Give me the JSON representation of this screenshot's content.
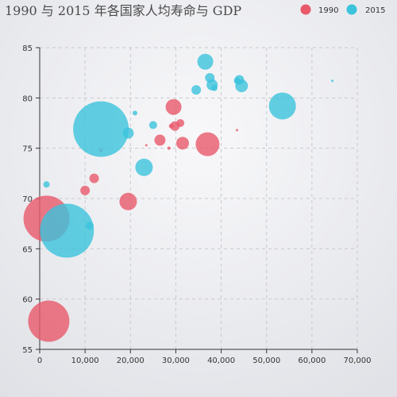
{
  "chart_data": {
    "type": "scatter",
    "title": "1990 与 2015 年各国家人均寿命与 GDP",
    "xlim": [
      0,
      70000
    ],
    "ylim": [
      55,
      85
    ],
    "x_ticks": [
      "0",
      "10,000",
      "20,000",
      "30,000",
      "40,000",
      "50,000",
      "60,000",
      "70,000"
    ],
    "y_ticks": [
      "55",
      "60",
      "65",
      "70",
      "75",
      "80",
      "85"
    ],
    "x_tick_values": [
      0,
      10000,
      20000,
      30000,
      40000,
      50000,
      60000,
      70000
    ],
    "y_tick_values": [
      55,
      60,
      65,
      70,
      75,
      80,
      85
    ],
    "grid": true,
    "legend_position": "top-right",
    "series": [
      {
        "name": "1990",
        "color": "#e8596a",
        "points": [
          {
            "x": 2000,
            "y": 57.8,
            "size": 26
          },
          {
            "x": 1500,
            "y": 68,
            "size": 29
          },
          {
            "x": 10000,
            "y": 70.8,
            "size": 6
          },
          {
            "x": 12000,
            "y": 72,
            "size": 6
          },
          {
            "x": 19500,
            "y": 69.7,
            "size": 11
          },
          {
            "x": 13500,
            "y": 74.8,
            "size": 2
          },
          {
            "x": 23500,
            "y": 75.3,
            "size": 1.5
          },
          {
            "x": 26500,
            "y": 75.8,
            "size": 7
          },
          {
            "x": 28500,
            "y": 75,
            "size": 2
          },
          {
            "x": 29000,
            "y": 77.2,
            "size": 3
          },
          {
            "x": 29800,
            "y": 77.2,
            "size": 6
          },
          {
            "x": 29500,
            "y": 79.1,
            "size": 10
          },
          {
            "x": 31000,
            "y": 77.5,
            "size": 5
          },
          {
            "x": 31500,
            "y": 75.5,
            "size": 8
          },
          {
            "x": 37000,
            "y": 75.4,
            "size": 15
          },
          {
            "x": 43500,
            "y": 76.8,
            "size": 1.5
          }
        ]
      },
      {
        "name": "2015",
        "color": "#3bc3dc",
        "points": [
          {
            "x": 6000,
            "y": 66.8,
            "size": 34
          },
          {
            "x": 1500,
            "y": 71.4,
            "size": 4
          },
          {
            "x": 11000,
            "y": 67.3,
            "size": 5
          },
          {
            "x": 13500,
            "y": 76.9,
            "size": 35
          },
          {
            "x": 19500,
            "y": 76.5,
            "size": 7
          },
          {
            "x": 21000,
            "y": 78.5,
            "size": 3
          },
          {
            "x": 23000,
            "y": 73.1,
            "size": 11
          },
          {
            "x": 25000,
            "y": 77.3,
            "size": 5
          },
          {
            "x": 34500,
            "y": 80.8,
            "size": 6
          },
          {
            "x": 36500,
            "y": 83.6,
            "size": 10
          },
          {
            "x": 37500,
            "y": 82,
            "size": 6
          },
          {
            "x": 38000,
            "y": 81.3,
            "size": 7
          },
          {
            "x": 38500,
            "y": 81,
            "size": 4
          },
          {
            "x": 43500,
            "y": 81.7,
            "size": 4
          },
          {
            "x": 44000,
            "y": 81.8,
            "size": 6
          },
          {
            "x": 44500,
            "y": 81.2,
            "size": 8
          },
          {
            "x": 53500,
            "y": 79.2,
            "size": 17
          },
          {
            "x": 64500,
            "y": 81.7,
            "size": 1.5
          }
        ]
      }
    ]
  }
}
